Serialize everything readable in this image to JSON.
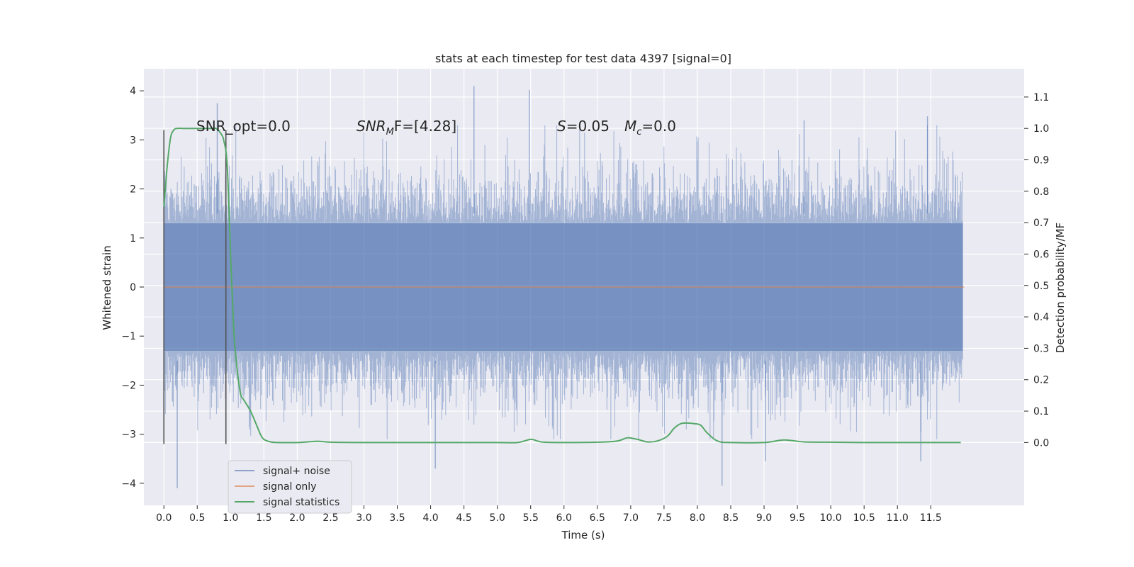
{
  "chart_data": {
    "type": "line",
    "title": "stats at each timestep for test data 4397 [signal=0]",
    "xlabel": "Time (s)",
    "ylabel": "Whitened strain",
    "ylabel_right": "Detection probability/MF",
    "xlim": [
      -0.3,
      12.9
    ],
    "ylim": [
      -4.45,
      4.45
    ],
    "ylim_right": [
      -0.2,
      1.19
    ],
    "x_ticks": [
      0.0,
      0.5,
      1.0,
      1.5,
      2.0,
      2.5,
      3.0,
      3.5,
      4.0,
      4.5,
      5.0,
      5.5,
      6.0,
      6.5,
      7.0,
      7.5,
      8.0,
      8.5,
      9.0,
      9.5,
      10.0,
      10.5,
      11.0,
      11.5
    ],
    "x_tick_labels": [
      "0.0",
      "0.5",
      "1.0",
      "1.5",
      "2.0",
      "2.5",
      "3.0",
      "3.5",
      "4.0",
      "4.5",
      "5.0",
      "5.5",
      "6.0",
      "6.5",
      "7.0",
      "7.5",
      "8.0",
      "8.5",
      "9.0",
      "9.5",
      "10.0",
      "10.5",
      "11.0",
      "11.5"
    ],
    "y_ticks": [
      -4,
      -3,
      -2,
      -1,
      0,
      1,
      2,
      3,
      4
    ],
    "y_tick_labels": [
      "−4",
      "−3",
      "−2",
      "−1",
      "0",
      "1",
      "2",
      "3",
      "4"
    ],
    "y_ticks_right": [
      0.0,
      0.1,
      0.2,
      0.3,
      0.4,
      0.5,
      0.6,
      0.7,
      0.8,
      0.9,
      1.0,
      1.1
    ],
    "y_tick_labels_right": [
      "0.0",
      "0.1",
      "0.2",
      "0.3",
      "0.4",
      "0.5",
      "0.6",
      "0.7",
      "0.8",
      "0.9",
      "1.0",
      "1.1"
    ],
    "grid": true,
    "legend_position": "lower-left",
    "colors": {
      "background": "#eaeaf2",
      "grid": "#ffffff",
      "noise": "#4c72b0",
      "signal": "#dd8452",
      "stats": "#55a868",
      "marker": "#555555"
    },
    "annotations": {
      "snr_opt": "SNR_opt=0.0",
      "snr_mf_prefix": "SNR",
      "snr_mf_sub": "M",
      "snr_mf_rest": "F=[4.28]",
      "s_label": "S",
      "s_value": "=0.05",
      "mc_label": "M",
      "mc_sub": "c",
      "mc_value": "=0.0"
    },
    "marker_lines_x": [
      0.0,
      0.93
    ],
    "marker_lines_y": [
      -3.2,
      3.2
    ],
    "series": [
      {
        "name": "signal+ noise",
        "axis": "left",
        "kind": "noise-band",
        "x_range": [
          0.0,
          11.98
        ],
        "typical_amplitude": 1.3,
        "peaks": [
          {
            "x": 0.8,
            "y": 3.75
          },
          {
            "x": 4.65,
            "y": 4.1
          },
          {
            "x": 5.48,
            "y": 4.02
          },
          {
            "x": 9.6,
            "y": 3.4
          },
          {
            "x": 11.45,
            "y": 3.48
          },
          {
            "x": 0.2,
            "y": -4.1
          },
          {
            "x": 4.07,
            "y": -3.7
          },
          {
            "x": 8.37,
            "y": -4.05
          },
          {
            "x": 11.35,
            "y": -3.55
          },
          {
            "x": 9.02,
            "y": -3.55
          }
        ]
      },
      {
        "name": "signal only",
        "axis": "left",
        "x": [
          0.0,
          12.0
        ],
        "y": [
          0.0,
          0.0
        ]
      },
      {
        "name": "signal statistics",
        "axis": "right",
        "x": [
          0.0,
          0.05,
          0.1,
          0.15,
          0.2,
          0.3,
          0.4,
          0.5,
          0.6,
          0.7,
          0.78,
          0.85,
          0.9,
          0.95,
          1.0,
          1.05,
          1.1,
          1.15,
          1.2,
          1.3,
          1.4,
          1.45,
          1.5,
          1.6,
          1.7,
          2.0,
          2.3,
          2.5,
          3.0,
          4.0,
          5.0,
          5.3,
          5.5,
          5.6,
          5.7,
          6.0,
          6.5,
          6.8,
          6.95,
          7.1,
          7.25,
          7.4,
          7.55,
          7.65,
          7.75,
          7.85,
          7.95,
          8.05,
          8.15,
          8.3,
          8.5,
          9.0,
          9.3,
          9.6,
          10.0,
          10.5,
          11.0,
          11.5,
          11.95
        ],
        "y": [
          0.75,
          0.88,
          0.97,
          0.995,
          1.0,
          1.0,
          1.0,
          1.0,
          1.0,
          1.0,
          1.0,
          0.985,
          0.96,
          0.88,
          0.6,
          0.35,
          0.23,
          0.155,
          0.135,
          0.1,
          0.05,
          0.025,
          0.01,
          0.002,
          0.0,
          0.0,
          0.004,
          0.001,
          0.0,
          0.0,
          0.0,
          0.0,
          0.01,
          0.005,
          0.001,
          0.0,
          0.001,
          0.005,
          0.015,
          0.01,
          0.002,
          0.005,
          0.02,
          0.045,
          0.06,
          0.062,
          0.06,
          0.055,
          0.03,
          0.005,
          0.0,
          0.0,
          0.008,
          0.002,
          0.001,
          0.0,
          0.0,
          0.0,
          0.0
        ]
      }
    ]
  }
}
